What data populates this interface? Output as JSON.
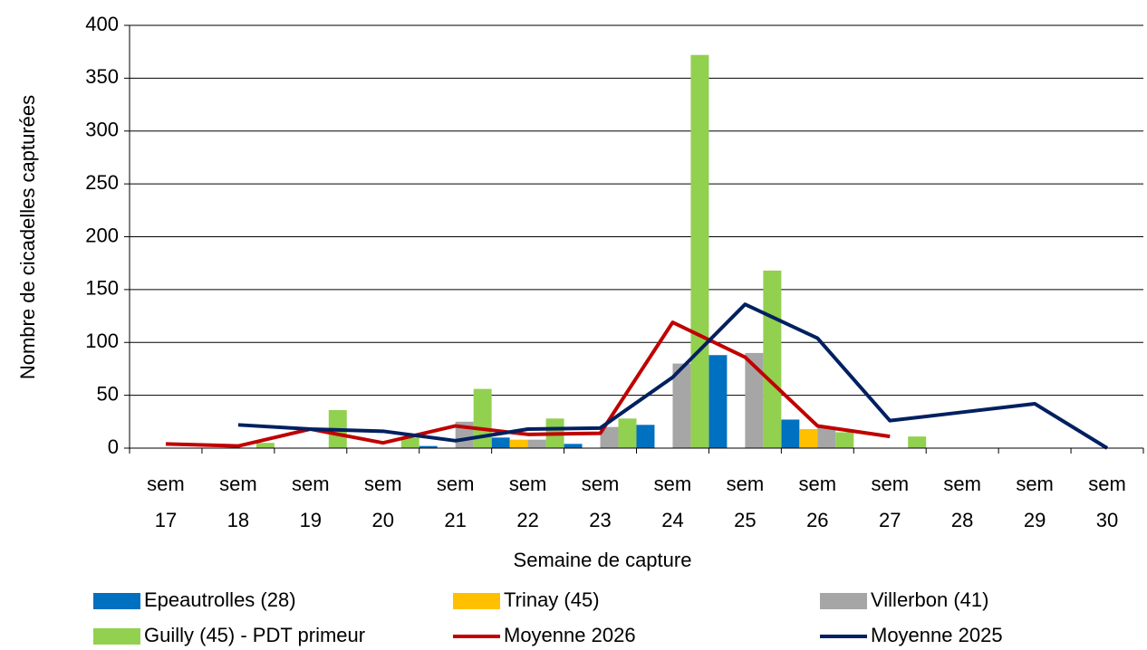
{
  "chart_data": {
    "type": "bar-line",
    "x_label": "Semaine de capture",
    "y_label": "Nombre de cicadelles capturées",
    "categories": [
      "sem 17",
      "sem 18",
      "sem 19",
      "sem 20",
      "sem 21",
      "sem 22",
      "sem 23",
      "sem 24",
      "sem 25",
      "sem 26",
      "sem 27",
      "sem 28",
      "sem 29",
      "sem 30"
    ],
    "series": [
      {
        "name": "Epeautrolles (28)",
        "type": "bar",
        "color": "#0070c0",
        "values": [
          null,
          null,
          null,
          null,
          2,
          10,
          4,
          22,
          88,
          27,
          null,
          null,
          null,
          null
        ]
      },
      {
        "name": "Trinay (45)",
        "type": "bar",
        "color": "#ffc000",
        "values": [
          null,
          null,
          null,
          null,
          null,
          8,
          null,
          null,
          null,
          18,
          null,
          null,
          null,
          null
        ]
      },
      {
        "name": "Villerbon (41)",
        "type": "bar",
        "color": "#a6a6a6",
        "values": [
          null,
          null,
          null,
          null,
          25,
          8,
          20,
          80,
          90,
          20,
          null,
          null,
          null,
          null
        ]
      },
      {
        "name": "Guilly (45) - PDT primeur",
        "type": "bar",
        "color": "#92d050",
        "values": [
          null,
          5,
          36,
          10,
          56,
          28,
          28,
          372,
          168,
          15,
          11,
          null,
          null,
          null
        ]
      },
      {
        "name": "Moyenne 2026",
        "type": "line",
        "color": "#c00000",
        "values": [
          4,
          2,
          18,
          5,
          21,
          13,
          14,
          119,
          86,
          21,
          11,
          null,
          null,
          null
        ]
      },
      {
        "name": "Moyenne 2025",
        "type": "line",
        "color": "#002060",
        "values": [
          null,
          22,
          18,
          16,
          7,
          18,
          19,
          67,
          136,
          104,
          26,
          34,
          42,
          0
        ]
      }
    ],
    "ylim": [
      0,
      400
    ],
    "yticks": [
      0,
      50,
      100,
      150,
      200,
      250,
      300,
      350,
      400
    ],
    "grid": true
  }
}
